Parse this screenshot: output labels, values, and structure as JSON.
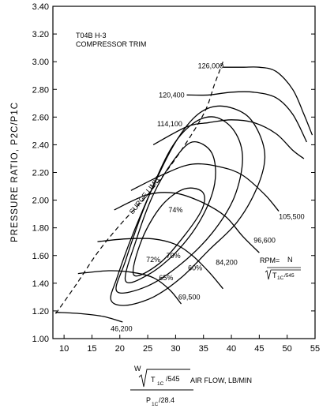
{
  "chart_data": {
    "type": "line",
    "title": "T04B H-3",
    "subtitle": "COMPRESSOR TRIM",
    "ylabel": "PRESSURE RATIO, P2C/P1C",
    "xlabel_text": "AIR FLOW, LB/MIN",
    "xlabel_formula": {
      "num_w": "W",
      "num_t": "T",
      "num_sub": "1C",
      "num_div": "/545",
      "den_p": "P",
      "den_sub": "1C",
      "den_div": "/28.4"
    },
    "xlim": [
      8,
      55
    ],
    "ylim": [
      1.0,
      3.4
    ],
    "xticks": [
      10,
      15,
      20,
      25,
      30,
      35,
      40,
      45,
      50,
      55
    ],
    "yticks": [
      "1.00",
      "1.20",
      "1.40",
      "1.60",
      "1.80",
      "2.00",
      "2.20",
      "2.40",
      "2.60",
      "2.80",
      "3.00",
      "3.20",
      "3.40"
    ],
    "rpm_label": "RPM=",
    "rpm_formula": {
      "n": "N",
      "t": "T",
      "sub": "1C",
      "div": "/545"
    },
    "surge_label": "SURGE LIMIT",
    "surge_line": [
      [
        8.5,
        1.18
      ],
      [
        12,
        1.38
      ],
      [
        16,
        1.62
      ],
      [
        20,
        1.82
      ],
      [
        25,
        2.04
      ],
      [
        30,
        2.3
      ],
      [
        35,
        2.62
      ],
      [
        37,
        2.84
      ],
      [
        38.5,
        3.0
      ]
    ],
    "speed_lines": [
      {
        "label": "46,200",
        "points": [
          [
            8.5,
            1.19
          ],
          [
            13,
            1.18
          ],
          [
            17,
            1.16
          ],
          [
            20.5,
            1.12
          ]
        ]
      },
      {
        "label": "69,500",
        "points": [
          [
            12.5,
            1.47
          ],
          [
            18,
            1.49
          ],
          [
            22,
            1.48
          ],
          [
            26,
            1.44
          ],
          [
            29,
            1.35
          ],
          [
            31,
            1.25
          ]
        ]
      },
      {
        "label": "84,200",
        "points": [
          [
            16,
            1.7
          ],
          [
            21,
            1.72
          ],
          [
            26,
            1.72
          ],
          [
            30,
            1.68
          ],
          [
            33,
            1.6
          ],
          [
            36,
            1.48
          ],
          [
            38.5,
            1.36
          ]
        ]
      },
      {
        "label": "96,600",
        "points": [
          [
            19,
            1.93
          ],
          [
            25,
            2.04
          ],
          [
            30,
            2.05
          ],
          [
            35,
            1.98
          ],
          [
            39,
            1.88
          ],
          [
            42,
            1.74
          ],
          [
            45,
            1.62
          ]
        ]
      },
      {
        "label": "105,500",
        "points": [
          [
            22,
            2.07
          ],
          [
            28,
            2.19
          ],
          [
            33,
            2.26
          ],
          [
            38,
            2.24
          ],
          [
            42,
            2.18
          ],
          [
            46,
            2.04
          ],
          [
            48.5,
            1.92
          ]
        ]
      },
      {
        "label": "114,100",
        "points": [
          [
            26,
            2.4
          ],
          [
            32,
            2.53
          ],
          [
            36,
            2.56
          ],
          [
            40,
            2.58
          ],
          [
            44,
            2.56
          ],
          [
            48,
            2.48
          ],
          [
            51,
            2.36
          ],
          [
            53,
            2.3
          ]
        ]
      },
      {
        "label": "120,400",
        "points": [
          [
            32,
            2.76
          ],
          [
            36,
            2.76
          ],
          [
            40,
            2.78
          ],
          [
            44,
            2.78
          ],
          [
            48,
            2.74
          ],
          [
            51,
            2.62
          ],
          [
            53.5,
            2.42
          ]
        ]
      },
      {
        "label": "126,000",
        "points": [
          [
            38.5,
            2.96
          ],
          [
            42,
            2.96
          ],
          [
            45,
            2.96
          ],
          [
            48,
            2.93
          ],
          [
            51,
            2.8
          ],
          [
            53,
            2.62
          ],
          [
            54.5,
            2.47
          ]
        ]
      }
    ],
    "efficiency_islands": [
      {
        "label": "60%",
        "points": [
          [
            18.4,
            1.28
          ],
          [
            19.5,
            1.44
          ],
          [
            22,
            1.72
          ],
          [
            26,
            2.1
          ],
          [
            30,
            2.42
          ],
          [
            34,
            2.62
          ],
          [
            38,
            2.68
          ],
          [
            42.5,
            2.62
          ],
          [
            45,
            2.48
          ],
          [
            46,
            2.3
          ],
          [
            44.5,
            2.08
          ],
          [
            41,
            1.84
          ],
          [
            36,
            1.64
          ],
          [
            31,
            1.44
          ],
          [
            26,
            1.3
          ],
          [
            21,
            1.24
          ],
          [
            18.4,
            1.28
          ]
        ]
      },
      {
        "label": "65%",
        "points": [
          [
            19.5,
            1.34
          ],
          [
            21,
            1.56
          ],
          [
            24.5,
            1.96
          ],
          [
            29,
            2.36
          ],
          [
            33,
            2.55
          ],
          [
            37,
            2.6
          ],
          [
            40.5,
            2.5
          ],
          [
            42,
            2.3
          ],
          [
            40.5,
            2.02
          ],
          [
            36.5,
            1.76
          ],
          [
            31,
            1.54
          ],
          [
            25,
            1.38
          ],
          [
            19.5,
            1.34
          ]
        ]
      },
      {
        "label": "70%",
        "points": [
          [
            21,
            1.42
          ],
          [
            23,
            1.72
          ],
          [
            26,
            2.04
          ],
          [
            29.5,
            2.28
          ],
          [
            33,
            2.42
          ],
          [
            36.5,
            2.34
          ],
          [
            37,
            2.12
          ],
          [
            34.5,
            1.86
          ],
          [
            30,
            1.62
          ],
          [
            25,
            1.46
          ],
          [
            21,
            1.42
          ]
        ]
      },
      {
        "label": "72%",
        "points": [
          [
            22.5,
            1.46
          ],
          [
            24,
            1.72
          ],
          [
            27.5,
            1.96
          ],
          [
            31.5,
            2.08
          ],
          [
            34.8,
            2.06
          ],
          [
            34.8,
            1.94
          ],
          [
            31.5,
            1.74
          ],
          [
            27,
            1.54
          ],
          [
            22.5,
            1.46
          ]
        ]
      }
    ],
    "efficiency_center_label": "74%"
  }
}
